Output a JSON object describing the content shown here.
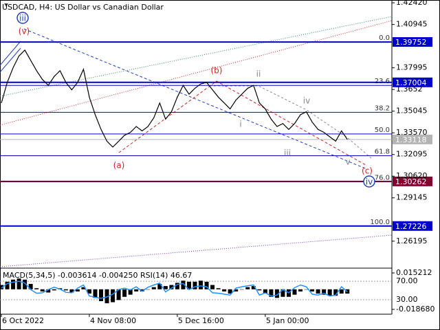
{
  "chart_data": [
    {
      "type": "line",
      "title": "USDCAD, H4:  US Dollar vs Canadian Dollar",
      "color": "#000000",
      "categories": [
        "6 Oct 2022",
        null,
        null,
        null,
        null,
        null,
        null,
        null,
        null,
        null,
        null,
        null,
        null,
        null,
        null,
        "4 Nov 08:00",
        null,
        null,
        null,
        null,
        null,
        null,
        null,
        null,
        null,
        null,
        null,
        null,
        null,
        null,
        "5 Dec 16:00",
        null,
        null,
        null,
        null,
        null,
        null,
        null,
        null,
        null,
        null,
        null,
        null,
        null,
        null,
        "5 Jan 00:00",
        null,
        null,
        null,
        null,
        null,
        null,
        null,
        null,
        null,
        null,
        null,
        null,
        null,
        null
      ],
      "values": [
        1.356,
        1.37,
        1.38,
        1.388,
        1.392,
        1.385,
        1.378,
        1.372,
        1.368,
        1.374,
        1.378,
        1.37,
        1.365,
        1.37,
        1.379,
        1.36,
        1.348,
        1.338,
        1.33,
        1.326,
        1.33,
        1.334,
        1.336,
        1.34,
        1.337,
        1.34,
        1.346,
        1.356,
        1.345,
        1.35,
        1.36,
        1.368,
        1.362,
        1.366,
        1.369,
        1.37,
        1.365,
        1.36,
        1.356,
        1.352,
        1.358,
        1.362,
        1.366,
        1.368,
        1.356,
        1.352,
        1.345,
        1.34,
        1.342,
        1.338,
        1.342,
        1.348,
        1.35,
        1.343,
        1.338,
        1.336,
        1.333,
        1.33,
        1.337,
        1.3312
      ],
      "ylim": [
        1.2436,
        1.4261
      ],
      "yticks": [
        {
          "value": 1.4242,
          "label": "1.42420"
        },
        1.40945,
        1.37995,
        1.3652,
        1.35045,
        {
          "value": 1.3357,
          "label": "1.33570"
        },
        1.32095,
        {
          "value": 1.3062,
          "label": "1.30620"
        },
        1.29145,
        1.26195
      ],
      "price_labels": [
        1.39752,
        1.37004,
        1.33118,
        1.30262,
        1.27226
      ],
      "price_label_colors": [
        "#0000cc",
        "#0000cc",
        "#b4b4b4",
        "#800030",
        "#0000cc"
      ],
      "fib_levels": [
        {
          "value": 1.39752,
          "label": "0.0"
        },
        {
          "value": 1.36796,
          "label": "23.6"
        },
        {
          "value": 1.34967,
          "label": "38.2"
        },
        {
          "value": 1.33489,
          "label": "50.0"
        },
        {
          "value": 1.32011,
          "label": "61.8"
        },
        {
          "value": 1.30232,
          "label": "76.0"
        },
        {
          "value": 1.27226,
          "label": "100.0"
        }
      ],
      "fib_color": "#0000cc",
      "wave_labels": [
        "iii",
        "(v)",
        "(b)",
        "ii",
        "i",
        "iii",
        "iv",
        "v",
        "(a)",
        "(c)",
        "iv"
      ]
    },
    {
      "type": "macd",
      "title": "MACD(5,34,5) -0.003614 -0.004250 RSI(14) 46.67",
      "color": "#000000",
      "values": [
        0.004,
        0.007,
        0.009,
        0.01,
        0.009,
        0.005,
        0.001,
        -0.002,
        -0.003,
        -0.001,
        0.001,
        -0.001,
        -0.003,
        -0.002,
        0.002,
        -0.004,
        -0.008,
        -0.011,
        -0.013,
        -0.012,
        -0.01,
        -0.007,
        -0.005,
        -0.002,
        -0.002,
        0.0,
        0.002,
        0.005,
        0.003,
        0.004,
        0.006,
        0.008,
        0.007,
        0.007,
        0.008,
        0.007,
        0.004,
        0.001,
        -0.002,
        -0.004,
        -0.002,
        0.0,
        0.002,
        0.003,
        -0.001,
        -0.004,
        -0.007,
        -0.008,
        -0.007,
        -0.007,
        -0.005,
        -0.002,
        0.0,
        -0.002,
        -0.004,
        -0.005,
        -0.006,
        -0.006,
        -0.004,
        -0.004
      ],
      "ylim": [
        {
          "value": -0.01868,
          "label": "-0.018680"
        },
        0.015212
      ],
      "yticks": [
        0.015212,
        {
          "value": -0.01868,
          "label": "-0.018680"
        }
      ],
      "y2lim": [
        0,
        100
      ],
      "y2ticks": [
        {
          "value": 70,
          "label": "70.00"
        },
        {
          "value": 30,
          "label": "30.00"
        }
      ],
      "series": [
        {
          "color": "#1e90ff",
          "axis": "y2",
          "values": [
            55,
            65,
            68,
            70,
            66,
            52,
            44,
            45,
            52,
            57,
            53,
            46,
            45,
            55,
            62,
            38,
            35,
            33,
            36,
            42,
            52,
            55,
            51,
            58,
            48,
            57,
            62,
            66,
            47,
            55,
            63,
            65,
            52,
            58,
            60,
            58,
            45,
            44,
            42,
            40,
            55,
            58,
            60,
            62,
            40,
            45,
            38,
            40,
            52,
            45,
            56,
            62,
            58,
            42,
            40,
            44,
            38,
            40,
            58,
            47
          ]
        }
      ]
    }
  ]
}
